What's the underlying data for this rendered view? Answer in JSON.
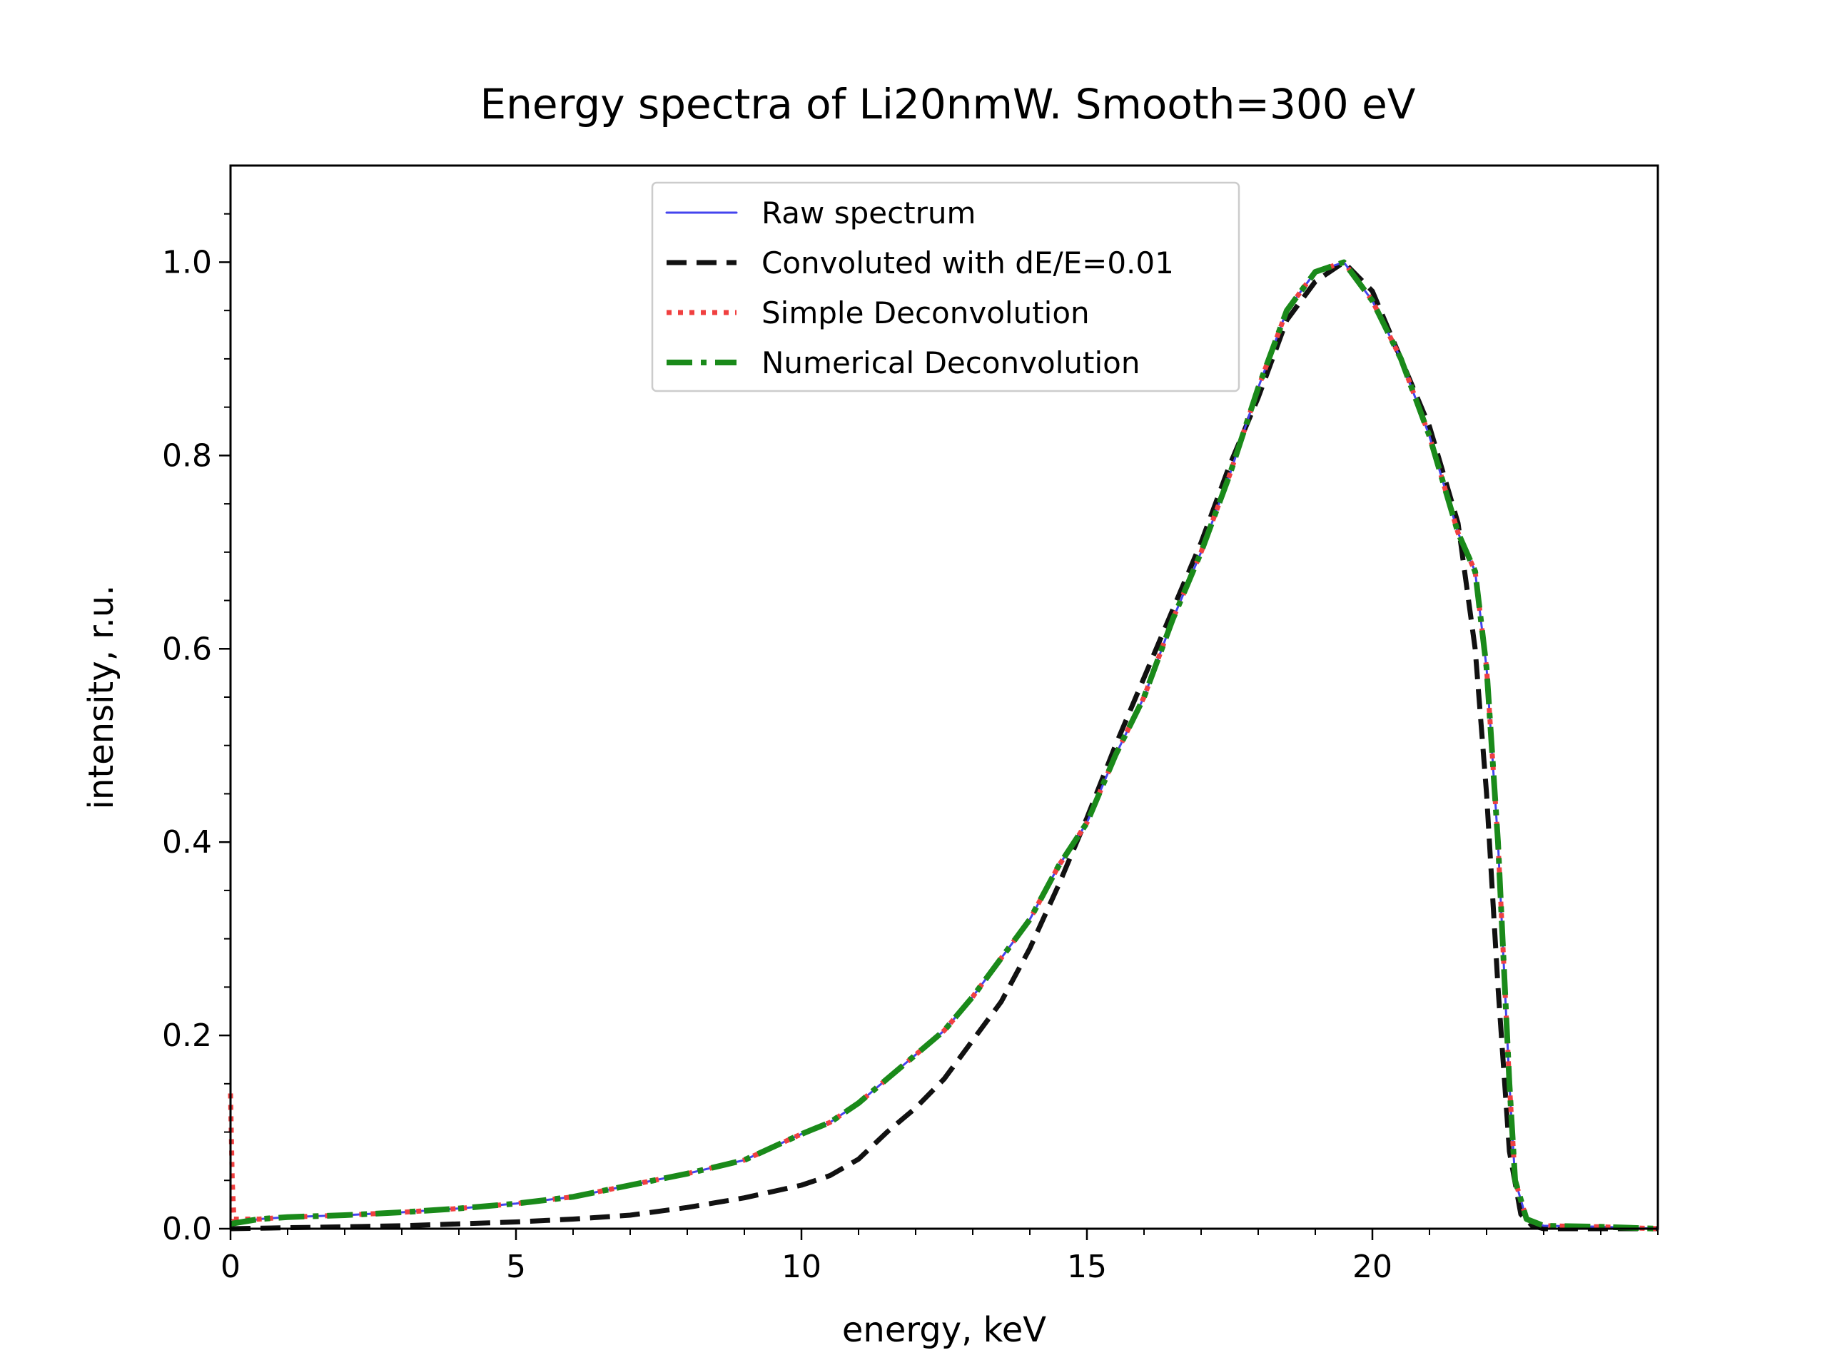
{
  "chart_data": {
    "type": "line",
    "title": "Energy spectra of Li20nmW. Smooth=300 eV",
    "xlabel": "energy, keV",
    "ylabel": "intensity, r.u.",
    "xlim": [
      0,
      25
    ],
    "ylim": [
      0,
      1.1
    ],
    "xticks": [
      0,
      5,
      10,
      15,
      20
    ],
    "xtick_labels": [
      "0",
      "5",
      "10",
      "15",
      "20"
    ],
    "yticks": [
      0.0,
      0.2,
      0.4,
      0.6,
      0.8,
      1.0
    ],
    "ytick_labels": [
      "0.0",
      "0.2",
      "0.4",
      "0.6",
      "0.8",
      "1.0"
    ],
    "grid": false,
    "legend_position": "top-center",
    "series": [
      {
        "name": "Raw spectrum",
        "color": "#4444ee",
        "style": "solid",
        "x": [
          0,
          0.5,
          1,
          2,
          3,
          4,
          5,
          6,
          7,
          8,
          9,
          10,
          10.5,
          11,
          11.5,
          12,
          12.5,
          13,
          13.5,
          14,
          14.5,
          15,
          15.5,
          16,
          16.5,
          17,
          17.5,
          18,
          18.5,
          19,
          19.5,
          20,
          20.5,
          21,
          21.5,
          21.8,
          22,
          22.2,
          22.4,
          22.5,
          22.7,
          23,
          24,
          25
        ],
        "y": [
          0.005,
          0.01,
          0.012,
          0.014,
          0.017,
          0.021,
          0.026,
          0.033,
          0.045,
          0.057,
          0.071,
          0.098,
          0.11,
          0.13,
          0.155,
          0.18,
          0.205,
          0.24,
          0.28,
          0.32,
          0.375,
          0.42,
          0.49,
          0.55,
          0.63,
          0.7,
          0.78,
          0.87,
          0.95,
          0.99,
          1.0,
          0.96,
          0.9,
          0.82,
          0.72,
          0.68,
          0.58,
          0.4,
          0.15,
          0.05,
          0.01,
          0.003,
          0.002,
          0.0
        ]
      },
      {
        "name": "Convoluted with dE/E=0.01",
        "color": "#111111",
        "style": "dashed",
        "x": [
          0,
          1,
          2,
          3,
          4,
          5,
          6,
          7,
          8,
          9,
          10,
          10.5,
          11,
          11.5,
          12,
          12.5,
          13,
          13.5,
          14,
          14.5,
          15,
          15.5,
          16,
          16.5,
          17,
          17.5,
          18,
          18.5,
          19,
          19.5,
          20,
          20.5,
          21,
          21.5,
          21.8,
          22,
          22.2,
          22.4,
          22.6,
          22.8,
          23,
          24,
          25
        ],
        "y": [
          0.0,
          0.001,
          0.002,
          0.003,
          0.005,
          0.007,
          0.01,
          0.014,
          0.022,
          0.032,
          0.045,
          0.055,
          0.072,
          0.1,
          0.125,
          0.155,
          0.195,
          0.235,
          0.29,
          0.355,
          0.425,
          0.5,
          0.57,
          0.64,
          0.71,
          0.79,
          0.86,
          0.94,
          0.98,
          1.0,
          0.97,
          0.9,
          0.83,
          0.73,
          0.6,
          0.45,
          0.25,
          0.08,
          0.015,
          0.003,
          0.0,
          0.0,
          0.0
        ]
      },
      {
        "name": "Simple Deconvolution",
        "color": "#f04040",
        "style": "dotted",
        "x": [
          0,
          0.03,
          0.06,
          0.5,
          1,
          2,
          3,
          4,
          5,
          6,
          7,
          8,
          9,
          10,
          10.5,
          11,
          11.5,
          12,
          12.5,
          13,
          13.5,
          14,
          14.5,
          15,
          15.5,
          16,
          16.5,
          17,
          17.5,
          18,
          18.5,
          19,
          19.5,
          20,
          20.5,
          21,
          21.5,
          21.8,
          22,
          22.2,
          22.4,
          22.5,
          22.7,
          23,
          24,
          25
        ],
        "y": [
          0.14,
          0.05,
          0.01,
          0.01,
          0.012,
          0.014,
          0.017,
          0.021,
          0.026,
          0.033,
          0.045,
          0.057,
          0.071,
          0.098,
          0.11,
          0.13,
          0.155,
          0.18,
          0.205,
          0.24,
          0.28,
          0.32,
          0.375,
          0.42,
          0.49,
          0.55,
          0.63,
          0.7,
          0.78,
          0.87,
          0.95,
          0.99,
          1.0,
          0.96,
          0.9,
          0.82,
          0.72,
          0.68,
          0.58,
          0.4,
          0.15,
          0.05,
          0.01,
          0.003,
          0.002,
          0.0
        ]
      },
      {
        "name": "Numerical Deconvolution",
        "color": "#1a8a1a",
        "style": "dashdot",
        "x": [
          0,
          0.5,
          1,
          2,
          3,
          4,
          5,
          6,
          7,
          8,
          9,
          10,
          10.5,
          11,
          11.5,
          12,
          12.5,
          13,
          13.5,
          14,
          14.5,
          15,
          15.5,
          16,
          16.5,
          17,
          17.5,
          18,
          18.5,
          19,
          19.5,
          20,
          20.5,
          21,
          21.5,
          21.8,
          22,
          22.2,
          22.4,
          22.5,
          22.7,
          23,
          24,
          25
        ],
        "y": [
          0.005,
          0.01,
          0.012,
          0.014,
          0.017,
          0.021,
          0.026,
          0.033,
          0.045,
          0.057,
          0.071,
          0.098,
          0.11,
          0.13,
          0.155,
          0.18,
          0.205,
          0.24,
          0.28,
          0.32,
          0.375,
          0.42,
          0.49,
          0.55,
          0.63,
          0.7,
          0.78,
          0.87,
          0.95,
          0.99,
          1.0,
          0.96,
          0.9,
          0.82,
          0.72,
          0.68,
          0.58,
          0.4,
          0.15,
          0.05,
          0.01,
          0.003,
          0.002,
          0.0
        ]
      }
    ]
  }
}
